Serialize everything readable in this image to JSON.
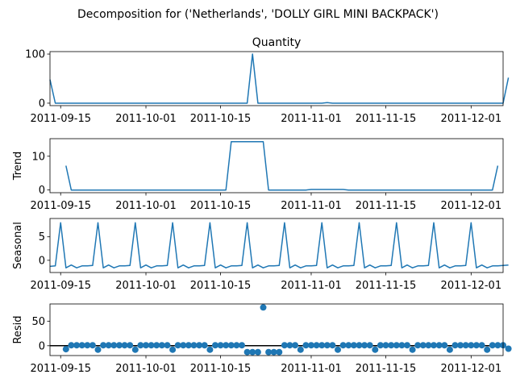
{
  "figure": {
    "suptitle": "Decomposition for ('Netherlands', 'DOLLY GIRL MINI BACKPACK')"
  },
  "chart_data": [
    {
      "type": "line",
      "id": "observed",
      "title": "Quantity",
      "ylabel": "",
      "x_start": "2011-09-13",
      "x_step_days": 1,
      "x_range": [
        "2011-09-13",
        "2011-12-07"
      ],
      "ylim": [
        -5,
        105
      ],
      "yticks": [
        0,
        100
      ],
      "xticks": [
        {
          "date": "2011-09-15",
          "label": "2011-09-15"
        },
        {
          "date": "2011-10-01",
          "label": "2011-10-01"
        },
        {
          "date": "2011-10-15",
          "label": "2011-10-15"
        },
        {
          "date": "2011-11-01",
          "label": "2011-11-01"
        },
        {
          "date": "2011-11-15",
          "label": "2011-11-15"
        },
        {
          "date": "2011-12-01",
          "label": "2011-12-01"
        }
      ],
      "color": "#1f77b4",
      "series": [
        {
          "values": [
            48,
            0,
            0,
            0,
            0,
            0,
            0,
            0,
            0,
            0,
            0,
            0,
            0,
            0,
            0,
            0,
            0,
            0,
            0,
            0,
            0,
            0,
            0,
            0,
            0,
            0,
            0,
            0,
            0,
            0,
            0,
            0,
            0,
            0,
            0,
            0,
            0,
            0,
            100,
            0,
            0,
            0,
            0,
            0,
            0,
            0,
            0,
            0,
            0,
            0,
            0,
            0,
            1,
            0,
            0,
            0,
            0,
            0,
            0,
            0,
            0,
            0,
            0,
            0,
            0,
            0,
            0,
            0,
            0,
            0,
            0,
            0,
            0,
            0,
            0,
            0,
            0,
            0,
            0,
            0,
            0,
            0,
            0,
            0,
            0,
            0,
            52
          ]
        }
      ]
    },
    {
      "type": "line",
      "id": "trend",
      "title": "",
      "ylabel": "Trend",
      "x_start": "2011-09-16",
      "x_step_days": 1,
      "x_range": [
        "2011-09-13",
        "2011-12-07"
      ],
      "ylim": [
        -0.8,
        15.2
      ],
      "yticks": [
        0,
        10
      ],
      "xticks": [
        {
          "date": "2011-09-15",
          "label": "2011-09-15"
        },
        {
          "date": "2011-10-01",
          "label": "2011-10-01"
        },
        {
          "date": "2011-10-15",
          "label": "2011-10-15"
        },
        {
          "date": "2011-11-01",
          "label": "2011-11-01"
        },
        {
          "date": "2011-11-15",
          "label": "2011-11-15"
        },
        {
          "date": "2011-12-01",
          "label": "2011-12-01"
        }
      ],
      "color": "#1f77b4",
      "series": [
        {
          "values": [
            7.2,
            0,
            0,
            0,
            0,
            0,
            0,
            0,
            0,
            0,
            0,
            0,
            0,
            0,
            0,
            0,
            0,
            0,
            0,
            0,
            0,
            0,
            0,
            0,
            0,
            0,
            0,
            0,
            0,
            0,
            0,
            14.3,
            14.3,
            14.3,
            14.3,
            14.3,
            14.3,
            14.3,
            0,
            0,
            0,
            0,
            0,
            0,
            0,
            0,
            0.15,
            0.15,
            0.15,
            0.15,
            0.15,
            0.15,
            0.15,
            0,
            0,
            0,
            0,
            0,
            0,
            0,
            0,
            0,
            0,
            0,
            0,
            0,
            0,
            0,
            0,
            0,
            0,
            0,
            0,
            0,
            0,
            0,
            0,
            0,
            0,
            0,
            0,
            7.2
          ]
        }
      ]
    },
    {
      "type": "line",
      "id": "seasonal",
      "title": "",
      "ylabel": "Seasonal",
      "x_start": "2011-09-13",
      "x_step_days": 1,
      "x_range": [
        "2011-09-13",
        "2011-12-07"
      ],
      "ylim": [
        -2.6,
        8.9
      ],
      "yticks": [
        0,
        5
      ],
      "xticks": [
        {
          "date": "2011-09-15",
          "label": "2011-09-15"
        },
        {
          "date": "2011-10-01",
          "label": "2011-10-01"
        },
        {
          "date": "2011-10-15",
          "label": "2011-10-15"
        },
        {
          "date": "2011-11-01",
          "label": "2011-11-01"
        },
        {
          "date": "2011-11-15",
          "label": "2011-11-15"
        },
        {
          "date": "2011-12-01",
          "label": "2011-12-01"
        }
      ],
      "color": "#1f77b4",
      "series": [
        {
          "values": [
            -1.3,
            -1.2,
            8.0,
            -1.6,
            -1.0,
            -1.6,
            -1.2,
            -1.2,
            -1.1,
            8.0,
            -1.6,
            -1.0,
            -1.6,
            -1.2,
            -1.2,
            -1.1,
            8.0,
            -1.6,
            -1.0,
            -1.6,
            -1.2,
            -1.2,
            -1.1,
            8.0,
            -1.6,
            -1.0,
            -1.6,
            -1.2,
            -1.2,
            -1.1,
            8.0,
            -1.6,
            -1.0,
            -1.6,
            -1.2,
            -1.2,
            -1.1,
            8.0,
            -1.6,
            -1.0,
            -1.6,
            -1.2,
            -1.2,
            -1.1,
            8.0,
            -1.6,
            -1.0,
            -1.6,
            -1.2,
            -1.2,
            -1.1,
            8.0,
            -1.6,
            -1.0,
            -1.6,
            -1.2,
            -1.2,
            -1.1,
            8.0,
            -1.6,
            -1.0,
            -1.6,
            -1.2,
            -1.2,
            -1.1,
            8.0,
            -1.6,
            -1.0,
            -1.6,
            -1.2,
            -1.2,
            -1.1,
            8.0,
            -1.6,
            -1.0,
            -1.6,
            -1.2,
            -1.2,
            -1.1,
            8.0,
            -1.6,
            -1.0,
            -1.6,
            -1.2,
            -1.2,
            -1.1,
            -1.0
          ]
        }
      ]
    },
    {
      "type": "scatter",
      "id": "resid",
      "title": "",
      "ylabel": "Resid",
      "x_start": "2011-09-16",
      "x_step_days": 1,
      "x_range": [
        "2011-09-13",
        "2011-12-07"
      ],
      "ylim": [
        -20,
        85
      ],
      "yticks": [
        0,
        50
      ],
      "zero_line": true,
      "xticks": [
        {
          "date": "2011-09-15",
          "label": "2011-09-15"
        },
        {
          "date": "2011-10-01",
          "label": "2011-10-01"
        },
        {
          "date": "2011-10-15",
          "label": "2011-10-15"
        },
        {
          "date": "2011-11-01",
          "label": "2011-11-01"
        },
        {
          "date": "2011-11-15",
          "label": "2011-11-15"
        },
        {
          "date": "2011-12-01",
          "label": "2011-12-01"
        }
      ],
      "color": "#1f77b4",
      "series": [
        {
          "values": [
            -7,
            1,
            1,
            1,
            1,
            1,
            -8,
            1,
            1,
            1,
            1,
            1,
            1,
            -8,
            1,
            1,
            1,
            1,
            1,
            1,
            -8,
            1,
            1,
            1,
            1,
            1,
            1,
            -8,
            1,
            1,
            1,
            1,
            1,
            1,
            -13,
            -13,
            -13,
            78,
            -13,
            -13,
            -13,
            1,
            1,
            1,
            -8,
            1,
            1,
            1,
            1,
            1,
            1,
            -8,
            1,
            1,
            1,
            1,
            1,
            1,
            -8,
            1,
            1,
            1,
            1,
            1,
            1,
            -8,
            1,
            1,
            1,
            1,
            1,
            1,
            -8,
            1,
            1,
            1,
            1,
            1,
            1,
            -8,
            1,
            1,
            1,
            -6
          ]
        }
      ]
    }
  ]
}
